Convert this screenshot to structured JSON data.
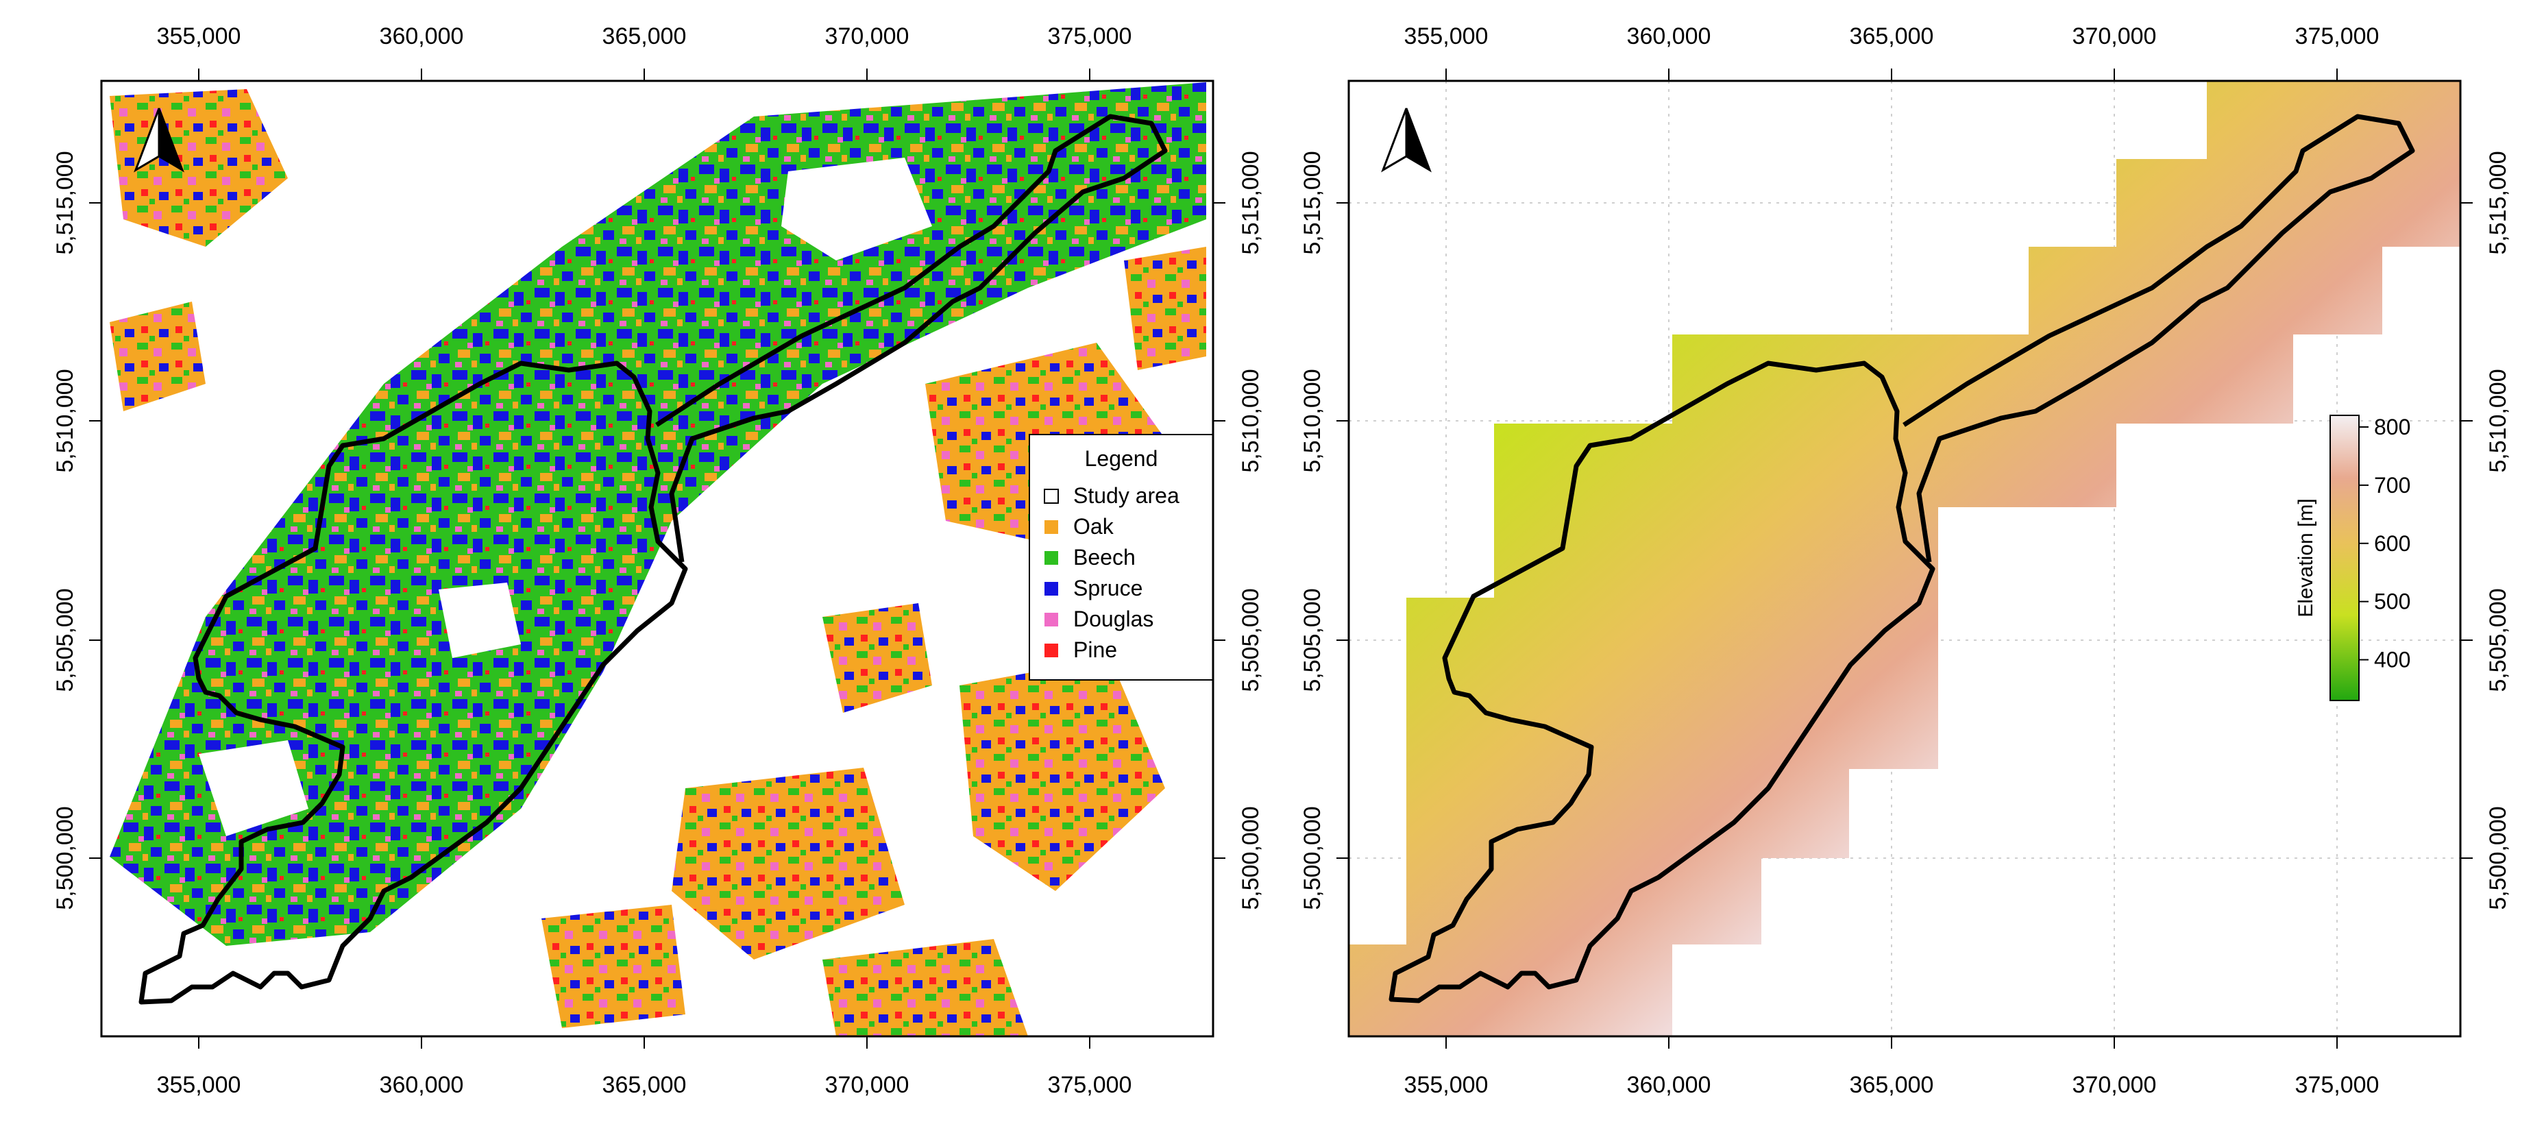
{
  "figure": {
    "panels": [
      {
        "id": "species",
        "x_ticks": [
          "355,000",
          "360,000",
          "365,000",
          "370,000",
          "375,000"
        ],
        "y_ticks": [
          "5,500,000",
          "5,505,000",
          "5,510,000",
          "5,515,000"
        ],
        "legend": {
          "title": "Legend",
          "items": [
            {
              "label": "Study area",
              "color": "#ffffff"
            },
            {
              "label": "Oak",
              "color": "#f5a623"
            },
            {
              "label": "Beech",
              "color": "#2dbf1f"
            },
            {
              "label": "Spruce",
              "color": "#1414e0"
            },
            {
              "label": "Douglas",
              "color": "#f06cc6"
            },
            {
              "label": "Pine",
              "color": "#ff2020"
            }
          ]
        }
      },
      {
        "id": "elevation",
        "x_ticks": [
          "355,000",
          "360,000",
          "365,000",
          "370,000",
          "375,000"
        ],
        "y_ticks": [
          "5,500,000",
          "5,505,000",
          "5,510,000",
          "5,515,000"
        ],
        "colorbar": {
          "label": "Elevation [m]",
          "ticks": [
            "400",
            "500",
            "600",
            "700",
            "800"
          ],
          "min": 330,
          "max": 820,
          "colors": [
            "#22a810",
            "#c9e021",
            "#e9c25a",
            "#e8a98f",
            "#f4f0f2"
          ]
        }
      }
    ]
  }
}
